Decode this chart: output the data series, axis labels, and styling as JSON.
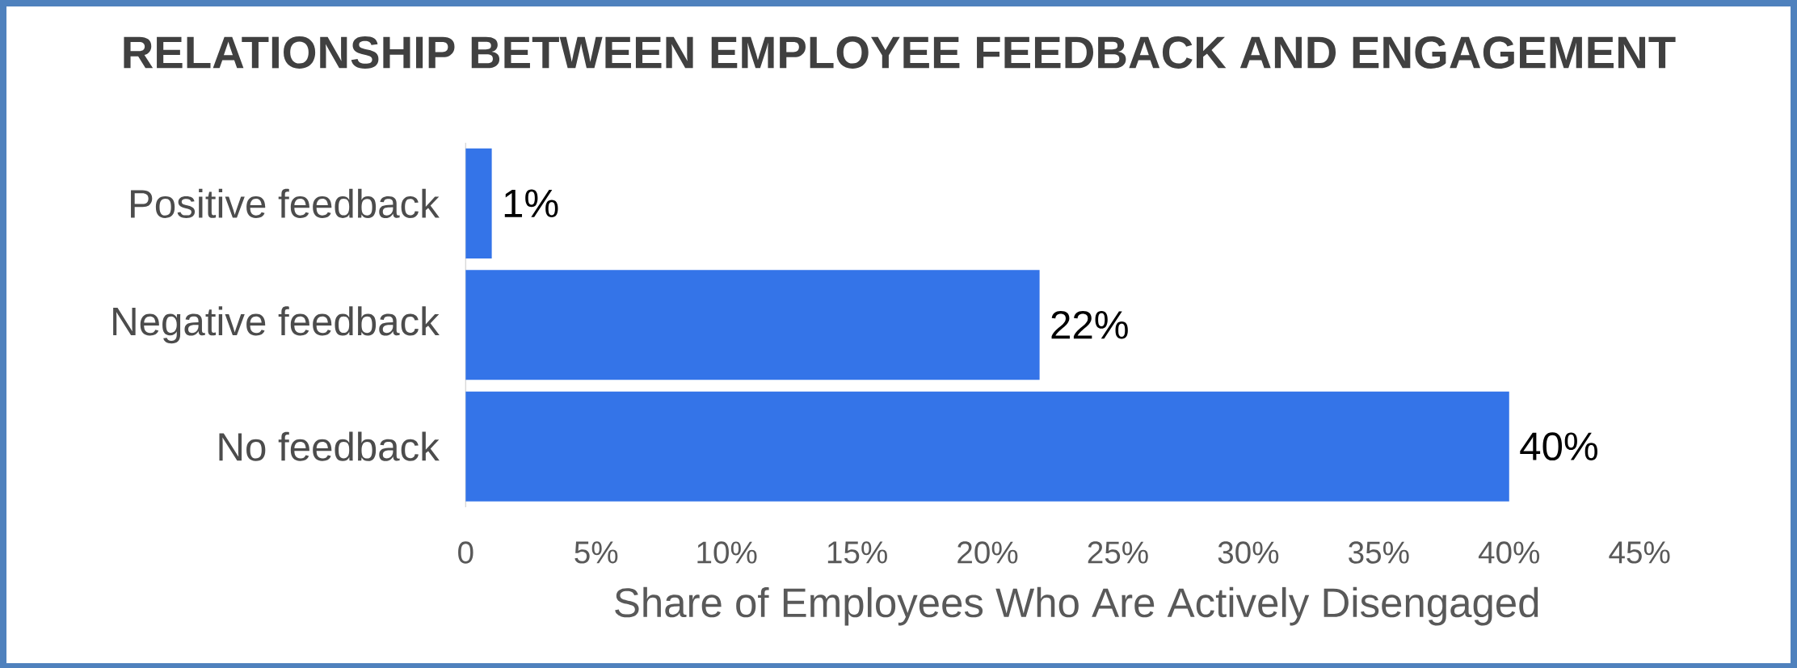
{
  "chart_data": {
    "type": "bar",
    "orientation": "horizontal",
    "title": "RELATIONSHIP BETWEEN EMPLOYEE FEEDBACK AND ENGAGEMENT",
    "xlabel": "Share of Employees Who Are Actively Disengaged",
    "categories": [
      "Positive feedback",
      "Negative feedback",
      "No feedback"
    ],
    "values": [
      1,
      22,
      40
    ],
    "value_labels": [
      "1%",
      "22%",
      "40%"
    ],
    "color": "#3474e8",
    "xlim": [
      0,
      45
    ],
    "xticks": [
      0,
      {
        "value": 5,
        "label": "5%"
      },
      {
        "value": 10,
        "label": "10%"
      },
      {
        "value": 15,
        "label": "15%"
      },
      {
        "value": 20,
        "label": "20%"
      },
      {
        "value": 25,
        "label": "25%"
      },
      {
        "value": 30,
        "label": "30%"
      },
      {
        "value": 35,
        "label": "35%"
      },
      {
        "value": 40,
        "label": "40%"
      },
      {
        "value": 45,
        "label": "45%"
      }
    ],
    "grid": false
  }
}
